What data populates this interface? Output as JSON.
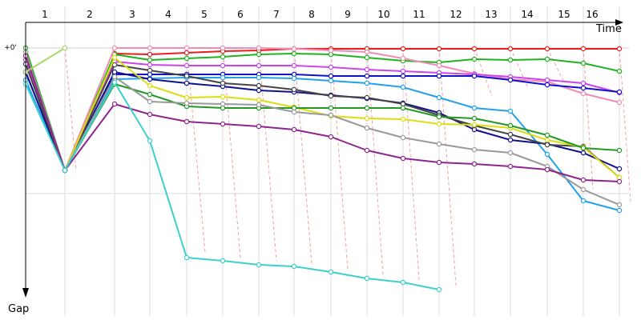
{
  "chart_data": {
    "type": "line",
    "xlabel": "Time",
    "ylabel": "Gap",
    "zero_label": "+0'",
    "laps": [
      "1",
      "2",
      "3",
      "4",
      "5",
      "6",
      "7",
      "8",
      "9",
      "10",
      "11",
      "12",
      "13",
      "14",
      "15",
      "16"
    ],
    "series": [
      {
        "color": "#e81e1e",
        "values": [
          null,
          null,
          7,
          8,
          6,
          4,
          3,
          1,
          1,
          1,
          1,
          1,
          1,
          1,
          1,
          1,
          1
        ]
      },
      {
        "color": "#1fb31f",
        "values": [
          0,
          153,
          8,
          15,
          13,
          11,
          8,
          7,
          8,
          12,
          16,
          18,
          14,
          15,
          14,
          19,
          29
        ]
      },
      {
        "color": "#f08cb4",
        "values": [
          30,
          153,
          0,
          0,
          0,
          0,
          0,
          1,
          3,
          5,
          13,
          22,
          32,
          39,
          42,
          57,
          68
        ]
      },
      {
        "color": "#cc44ee",
        "values": [
          15,
          153,
          17,
          21,
          22,
          22,
          22,
          22,
          24,
          27,
          29,
          31,
          33,
          36,
          40,
          44,
          56
        ]
      },
      {
        "color": "#1111cc",
        "values": [
          30,
          153,
          33,
          33,
          33,
          33,
          33,
          33,
          35,
          35,
          35,
          35,
          35,
          40,
          46,
          50,
          55
        ]
      },
      {
        "color": "#22a0ee",
        "values": [
          40,
          153,
          39,
          38,
          37,
          37,
          37,
          38,
          41,
          44,
          49,
          62,
          75,
          79,
          133,
          191,
          203
        ]
      },
      {
        "color": "#11118e",
        "values": [
          30,
          153,
          30,
          39,
          44,
          48,
          53,
          55,
          59,
          63,
          69,
          81,
          102,
          115,
          120,
          131,
          151
        ]
      },
      {
        "color": "#444444",
        "values": [
          20,
          153,
          21,
          28,
          35,
          44,
          47,
          52,
          60,
          62,
          70,
          84,
          97,
          108,
          121,
          123,
          162
        ]
      },
      {
        "color": "#dddd11",
        "values": [
          10,
          153,
          12,
          47,
          62,
          61,
          65,
          74,
          85,
          88,
          89,
          95,
          96,
          100,
          115,
          124,
          162
        ]
      },
      {
        "color": "#229922",
        "values": [
          5,
          153,
          45,
          58,
          73,
          75,
          75,
          75,
          75,
          75,
          75,
          86,
          88,
          97,
          109,
          125,
          128
        ]
      },
      {
        "color": "#999999",
        "values": [
          5,
          153,
          36,
          67,
          69,
          70,
          71,
          80,
          84,
          100,
          112,
          120,
          127,
          131,
          148,
          177,
          196
        ]
      },
      {
        "color": "#8e248e",
        "values": [
          10,
          153,
          70,
          83,
          92,
          95,
          98,
          102,
          111,
          128,
          138,
          143,
          145,
          148,
          152,
          165,
          167
        ]
      },
      {
        "color": "#3ccfcf",
        "values": [
          45,
          153,
          43,
          116,
          262,
          266,
          271,
          273,
          280,
          288,
          293,
          302,
          null,
          null,
          null,
          null,
          null
        ]
      },
      {
        "color": "#a6d96a",
        "values": [
          30,
          0,
          null,
          null,
          null,
          null,
          null,
          null,
          null,
          null,
          null,
          null,
          null,
          null,
          null,
          null,
          null
        ]
      }
    ]
  }
}
